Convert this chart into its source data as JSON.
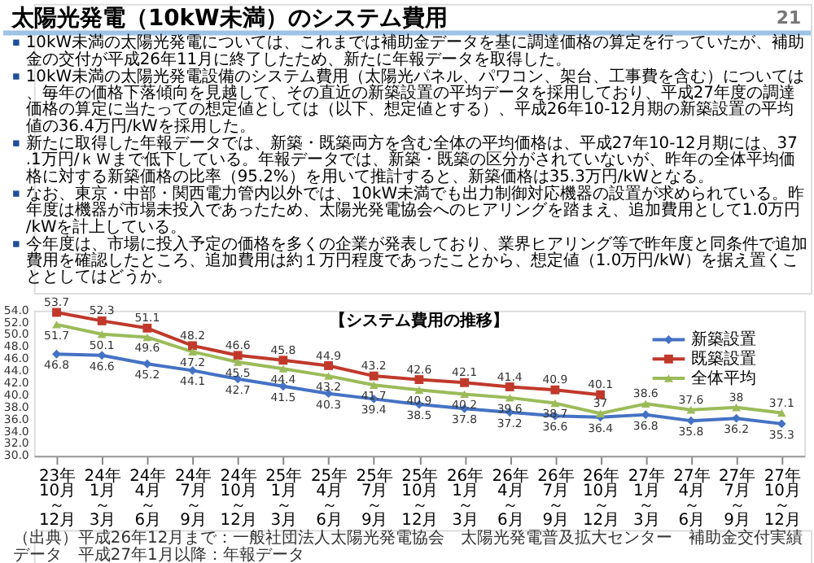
{
  "chart_data": {
    "type": "line",
    "title": "太陽光発電（10kW未満）のシステム費用",
    "subtitle": "【システム費用の推移】",
    "categories": [
      "23年10月～12月",
      "24年1月～3月",
      "24年4月～6月",
      "24年7月～9月",
      "24年10月～12月",
      "25年1月～3月",
      "25年4月～6月",
      "25年7月～9月",
      "25年10月～12月",
      "26年1月～3月",
      "26年4月～6月",
      "26年7月～9月",
      "26年10月～12月",
      "27年1月～3月",
      "27年4月～6月",
      "27年7月～9月",
      "27年10月～12月"
    ],
    "series": [
      {
        "name": "新築設置",
        "color": "#4472c4",
        "marker": "diamond",
        "values": [
          46.8,
          46.6,
          45.2,
          44.1,
          42.7,
          41.5,
          40.3,
          39.4,
          38.5,
          37.8,
          37.2,
          36.6,
          36.4,
          36.8,
          35.8,
          36.2,
          35.3
        ],
        "value_labels": [
          "46.8",
          "46.6",
          "45.2",
          "44.1",
          "42.7",
          "41.5",
          "40.3",
          "39.4",
          "38.5",
          "37.8",
          "37.2",
          "36.6",
          "36.4",
          "36.8",
          "35.8",
          "36.2",
          "35.3"
        ]
      },
      {
        "name": "既築設置",
        "color": "#c0392b",
        "marker": "square",
        "values": [
          53.7,
          52.3,
          51.1,
          48.2,
          46.6,
          45.8,
          44.9,
          43.2,
          42.6,
          42.1,
          41.4,
          40.9,
          40.1,
          null,
          null,
          null,
          null
        ],
        "value_labels": [
          "53.7",
          "52.3",
          "51.1",
          "48.2",
          "46.6",
          "45.8",
          "44.9",
          "43.2",
          "42.6",
          "42.1",
          "41.4",
          "40.9",
          "40.1",
          null,
          null,
          null,
          null
        ]
      },
      {
        "name": "全体平均",
        "color": "#9bbb59",
        "marker": "triangle",
        "values": [
          51.7,
          50.1,
          49.6,
          47.2,
          45.5,
          44.4,
          43.2,
          41.7,
          40.9,
          40.2,
          39.6,
          38.7,
          37.0,
          38.6,
          37.6,
          38.0,
          37.1
        ],
        "value_labels": [
          "51.7",
          "50.1",
          "49.6",
          "47.2",
          "45.5",
          "44.4",
          "43.2",
          "41.7",
          "40.9",
          "40.2",
          "39.6",
          "38.7",
          "37",
          "38.6",
          "37.6",
          "38",
          "37.1"
        ]
      }
    ],
    "ylim": [
      30,
      54
    ],
    "yticks": [
      {
        "value": 30,
        "label": "30.0"
      },
      {
        "value": 32,
        "label": "32.0"
      },
      {
        "value": 34,
        "label": "34.0"
      },
      {
        "value": 36,
        "label": "36.0"
      },
      {
        "value": 38,
        "label": "38.0"
      },
      {
        "value": 40,
        "label": "40.0"
      },
      {
        "value": 42,
        "label": "42.0"
      },
      {
        "value": 44,
        "label": "44.0"
      },
      {
        "value": 46,
        "label": "46.0"
      },
      {
        "value": 48,
        "label": "48.0"
      },
      {
        "value": 50,
        "label": "50.0"
      },
      {
        "value": 52,
        "label": "52.0"
      },
      {
        "value": 54,
        "label": "54.0"
      }
    ],
    "legend": "top right",
    "annotations": [
      "21",
      "10kW未満の太陽光発電については、これまでは補助金データを基に調達価格の算定を行っていたが、補助金の交付が平成26年11月に終了したため、新たに年報データを取得した。",
      "10kW未満の太陽光発電設備のシステム費用（太陽光パネル、パワコン、架台、工事費を含む）については、毎年の価格下落傾向を見越して、その直近の新築設置の平均データを採用しており、平成27年度の調達価格の算定に当たっての想定値としては（以下、想定値とする）、平成26年10-12月期の新築設置の平均値の36.4万円/kWを採用した。",
      "新たに取得した年報データでは、新築・既築両方を含む全体の平均価格は、平成27年10-12月期には、37.1万円/ｋＷまで低下している。年報データでは、新築・既築の区分がされていないが、昨年の全体平均価格に対する新築価格の比率（95.2%）を用いて推計すると、新築価格は35.3万円/kWとなる。",
      "なお、東京・中部・関西電力管内以外では、10kW未満でも出力制御対応機器の設置が求められている。昨年度は機器が市場未投入であったため、太陽光発電協会へのヒアリングを踏まえ、追加費用として1.0万円/kWを計上している。",
      "今年度は、市場に投入予定の価格を多くの企業が発表しており、業界ヒアリング等で昨年度と同条件で追加費用を確認したところ、追加費用は約１万円程度であったことから、想定値（1.0万円/kW）を据え置くこととしてはどうか。",
      "（出典）平成26年12月まで：一般社団法人太陽光発電協会　太陽光発電普及拡大センター　補助金交付実績データ　平成27年1月以降：年報データ"
    ]
  }
}
